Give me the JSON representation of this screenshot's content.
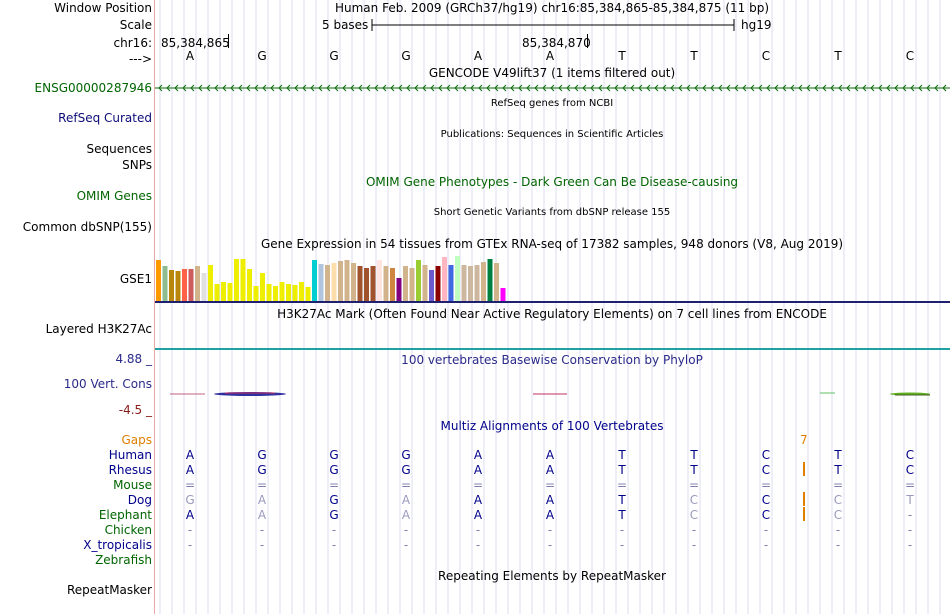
{
  "labels": {
    "window_position": "Window Position",
    "scale": "Scale",
    "chrom": "chr16:",
    "arrows": "--->",
    "gene_id": "ENSG00000287946",
    "refseq": "RefSeq Curated",
    "sequences": "Sequences",
    "snps": "SNPs",
    "omim": "OMIM Genes",
    "common_dbsnp": "Common dbSNP(155)",
    "gse1": "GSE1",
    "layered": "Layered H3K27Ac",
    "cons_max": "4.88 _",
    "cons_label": "100 Vert. Cons",
    "cons_min": "-4.5 _",
    "gaps": "Gaps",
    "species": [
      "Human",
      "Rhesus",
      "Mouse",
      "Dog",
      "Elephant",
      "Chicken",
      "X_tropicalis",
      "Zebrafish"
    ],
    "repeatmasker": "RepeatMasker"
  },
  "header": {
    "position_text": "Human Feb. 2009 (GRCh37/hg19)   chr16:85,384,865-85,384,875 (11 bp)",
    "scale_text": "5 bases",
    "assembly": "hg19",
    "pos1": "85,384,865",
    "pos2": "85,384,870"
  },
  "bases": [
    "A",
    "G",
    "G",
    "G",
    "A",
    "A",
    "T",
    "T",
    "C",
    "T",
    "C"
  ],
  "tracks": {
    "gencode": "GENCODE V49lift37 (1 items filtered out)",
    "refseq": "RefSeq genes from NCBI",
    "publications": "Publications: Sequences in Scientific Articles",
    "omim": "OMIM Gene Phenotypes - Dark Green Can Be Disease-causing",
    "dbsnp": "Short Genetic Variants from dbSNP release 155",
    "gtex": "Gene Expression in 54 tissues from GTEx RNA-seq of 17382 samples, 948 donors (V8, Aug 2019)",
    "h3k27ac": "H3K27Ac Mark (Often Found Near Active Regulatory Elements) on 7 cell lines from ENCODE",
    "phylop": "100 vertebrates Basewise Conservation by PhyloP",
    "multiz": "Multiz Alignments of 100 Vertebrates",
    "repeat": "Repeating Elements by RepeatMasker"
  },
  "gap_count": "7",
  "alignment": {
    "Human": [
      "A",
      "G",
      "G",
      "G",
      "A",
      "A",
      "T",
      "T",
      "C",
      "T",
      "C"
    ],
    "Rhesus": [
      "A",
      "G",
      "G",
      "G",
      "A",
      "A",
      "T",
      "T",
      "C",
      "T",
      "C"
    ],
    "Mouse": [
      "=",
      "=",
      "=",
      "=",
      "=",
      "=",
      "=",
      "=",
      "=",
      "=",
      "="
    ],
    "Dog": [
      "G",
      "A",
      "G",
      "A",
      "A",
      "A",
      "T",
      "C",
      "C",
      "C",
      "T"
    ],
    "Elephant": [
      "A",
      "A",
      "G",
      "A",
      "A",
      "A",
      "T",
      "C",
      "C",
      "C",
      "-"
    ],
    "Chicken": [
      "-",
      "-",
      "-",
      "-",
      "-",
      "-",
      "-",
      "-",
      "-",
      "-",
      "-"
    ],
    "X_tropicalis": [
      "-",
      "-",
      "-",
      "-",
      "-",
      "-",
      "-",
      "-",
      "-",
      "-",
      "-"
    ]
  },
  "gtex_colors": [
    "#ff9900",
    "#8fbc8f",
    "#b8860b",
    "#b8860b",
    "#ff6347",
    "#cd5c5c",
    "#d2b48c",
    "#e0e0e0",
    "#eeee00",
    "#eeee00",
    "#eeee00",
    "#eeee00",
    "#eeee00",
    "#eeee00",
    "#eeee00",
    "#eeee00",
    "#eeee00",
    "#eeee00",
    "#eeee00",
    "#eeee00",
    "#eeee00",
    "#eeee00",
    "#eeee00",
    "#eeee00",
    "#00ced1",
    "#b0c4de",
    "#d2b48c",
    "#ffdead",
    "#d2b48c",
    "#d2b48c",
    "#d2b48c",
    "#a0522d",
    "#a0522d",
    "#a0522d",
    "#ffe4e1",
    "#d2b48c",
    "#cd853f",
    "#800080",
    "#d2b48c",
    "#d2b48c",
    "#9acd32",
    "#d2b48c",
    "#6a5acd",
    "#8b0000",
    "#ffb6c1",
    "#4169e1",
    "#c0ffc0",
    "#cdb79e",
    "#cdb79e",
    "#cdb79e",
    "#d2b48c",
    "#008040",
    "#d2b48c",
    "#ff00ff"
  ],
  "gtex_heights": [
    0.9,
    0.75,
    0.68,
    0.65,
    0.7,
    0.7,
    0.75,
    0.6,
    0.78,
    0.38,
    0.42,
    0.4,
    0.92,
    0.92,
    0.7,
    0.32,
    0.6,
    0.38,
    0.32,
    0.42,
    0.38,
    0.34,
    0.42,
    0.3,
    0.9,
    0.8,
    0.78,
    0.82,
    0.88,
    0.9,
    0.82,
    0.75,
    0.72,
    0.75,
    0.9,
    0.75,
    0.72,
    0.5,
    0.75,
    0.72,
    0.9,
    0.78,
    0.68,
    0.75,
    0.95,
    0.78,
    0.98,
    0.78,
    0.75,
    0.78,
    0.85,
    0.92,
    0.82,
    0.28
  ]
}
